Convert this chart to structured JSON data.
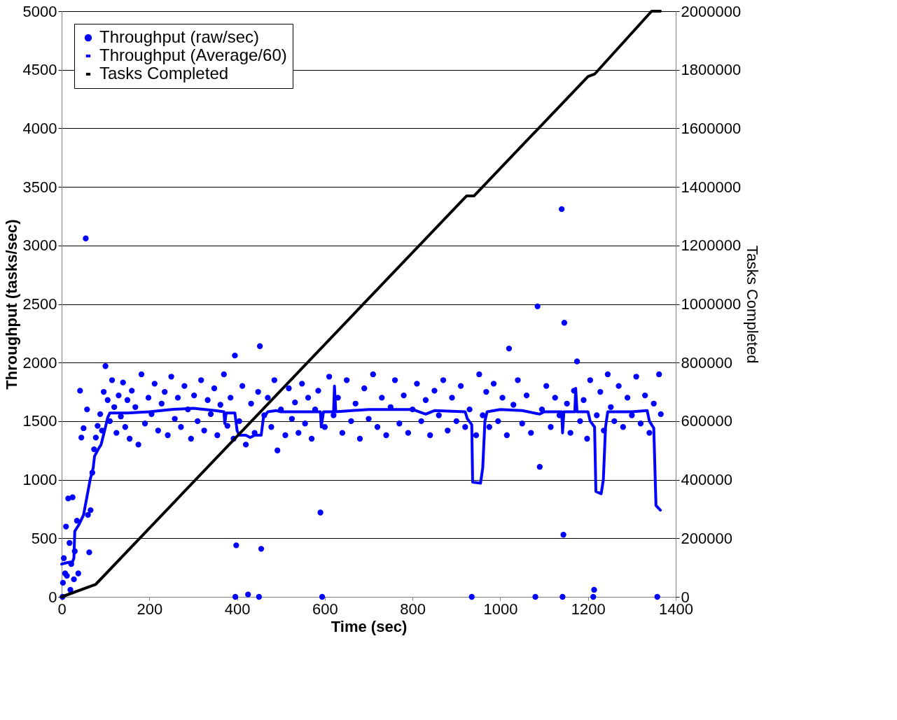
{
  "chart_data": {
    "type": "line",
    "xlabel": "Time (sec)",
    "ylabel": "Throughput (tasks/sec)",
    "y2label": "Tasks Completed",
    "xlim": [
      0,
      1400
    ],
    "xticks": [
      0,
      200,
      400,
      600,
      800,
      1000,
      1200,
      1400
    ],
    "ylim": [
      0,
      5000
    ],
    "yticks": [
      0,
      500,
      1000,
      1500,
      2000,
      2500,
      3000,
      3500,
      4000,
      4500,
      5000
    ],
    "y2lim": [
      0,
      2000000
    ],
    "y2ticks": [
      0,
      200000,
      400000,
      600000,
      800000,
      1000000,
      1200000,
      1400000,
      1600000,
      1800000,
      2000000
    ],
    "grid": "y",
    "legend": "top left",
    "line_style": "solid",
    "series": [
      {
        "name": "Throughput (raw/sec)",
        "type": "scatter",
        "marker": "circle",
        "color": "#0000ff",
        "x": [
          2,
          3,
          5,
          8,
          10,
          12,
          15,
          18,
          20,
          22,
          25,
          28,
          30,
          35,
          38,
          42,
          45,
          50,
          55,
          58,
          60,
          63,
          66,
          70,
          74,
          78,
          82,
          88,
          92,
          96,
          100,
          105,
          110,
          115,
          120,
          125,
          130,
          135,
          140,
          145,
          150,
          155,
          160,
          168,
          175,
          182,
          190,
          198,
          205,
          212,
          220,
          228,
          235,
          242,
          250,
          258,
          265,
          272,
          280,
          288,
          295,
          302,
          310,
          318,
          325,
          333,
          340,
          348,
          355,
          362,
          370,
          378,
          385,
          392,
          395,
          396,
          398,
          405,
          412,
          420,
          425,
          432,
          440,
          448,
          450,
          452,
          455,
          462,
          470,
          478,
          485,
          492,
          500,
          510,
          518,
          525,
          532,
          540,
          548,
          555,
          562,
          570,
          578,
          585,
          590,
          594,
          600,
          610,
          620,
          630,
          640,
          650,
          660,
          670,
          680,
          690,
          700,
          710,
          720,
          730,
          740,
          750,
          760,
          770,
          780,
          790,
          800,
          810,
          820,
          830,
          840,
          850,
          860,
          870,
          880,
          890,
          900,
          910,
          920,
          930,
          935,
          945,
          952,
          960,
          968,
          975,
          985,
          995,
          1005,
          1015,
          1020,
          1030,
          1040,
          1050,
          1060,
          1070,
          1080,
          1085,
          1090,
          1095,
          1105,
          1115,
          1125,
          1135,
          1140,
          1142,
          1144,
          1146,
          1152,
          1160,
          1168,
          1175,
          1182,
          1190,
          1198,
          1205,
          1212,
          1214,
          1220,
          1228,
          1236,
          1245,
          1252,
          1260,
          1270,
          1280,
          1290,
          1300,
          1310,
          1320,
          1330,
          1340,
          1350,
          1358,
          1362,
          1366
        ],
        "values": [
          0,
          120,
          330,
          200,
          600,
          180,
          840,
          460,
          60,
          280,
          850,
          150,
          390,
          650,
          200,
          1760,
          1360,
          1440,
          3060,
          1600,
          700,
          380,
          740,
          1060,
          1260,
          1360,
          1460,
          1560,
          1420,
          1750,
          1970,
          1680,
          1500,
          1850,
          1620,
          1400,
          1720,
          1540,
          1830,
          1450,
          1680,
          1350,
          1760,
          1620,
          1300,
          1900,
          1480,
          1700,
          1560,
          1820,
          1420,
          1650,
          1750,
          1380,
          1880,
          1520,
          1700,
          1450,
          1800,
          1600,
          1350,
          1720,
          1500,
          1850,
          1420,
          1680,
          1560,
          1780,
          1380,
          1640,
          1900,
          1460,
          1700,
          1350,
          2060,
          0,
          440,
          1500,
          1800,
          1300,
          20,
          1650,
          1400,
          1750,
          0,
          2140,
          410,
          1550,
          1700,
          1450,
          1850,
          1250,
          1600,
          1380,
          1780,
          1520,
          1660,
          1400,
          1820,
          1480,
          1700,
          1350,
          1600,
          1760,
          720,
          0,
          1450,
          1880,
          1550,
          1700,
          1400,
          1850,
          1500,
          1650,
          1350,
          1780,
          1520,
          1900,
          1450,
          1700,
          1380,
          1620,
          1850,
          1480,
          1720,
          1400,
          1600,
          1820,
          1500,
          1680,
          1380,
          1760,
          1550,
          1850,
          1420,
          1700,
          1500,
          1800,
          1450,
          1600,
          0,
          1380,
          1900,
          1550,
          1750,
          1450,
          1820,
          1500,
          1700,
          1380,
          2120,
          1640,
          1850,
          1480,
          1720,
          1400,
          0,
          2480,
          1110,
          1600,
          1800,
          1450,
          1700,
          1550,
          3310,
          0,
          530,
          2340,
          1650,
          1400,
          1760,
          2010,
          1500,
          1680,
          1350,
          1850,
          0,
          60,
          1550,
          1750,
          1420,
          1900,
          1620,
          1500,
          1800,
          1450,
          1700,
          1550,
          1880,
          1480,
          1720,
          1400,
          1650,
          0,
          1900,
          1560
        ]
      },
      {
        "name": "Throughput (Average/60)",
        "color": "#0000ff",
        "x": [
          0,
          10,
          25,
          28,
          30,
          40,
          50,
          55,
          65,
          72,
          75,
          85,
          90,
          100,
          105,
          110,
          150,
          200,
          250,
          300,
          350,
          370,
          372,
          375,
          395,
          400,
          405,
          420,
          430,
          440,
          455,
          460,
          470,
          490,
          500,
          590,
          592,
          597,
          620,
          622,
          625,
          700,
          800,
          830,
          850,
          920,
          925,
          935,
          937,
          955,
          960,
          965,
          970,
          1000,
          1050,
          1090,
          1100,
          1140,
          1142,
          1145,
          1170,
          1172,
          1175,
          1200,
          1205,
          1215,
          1218,
          1230,
          1235,
          1240,
          1245,
          1300,
          1335,
          1340,
          1350,
          1355,
          1365
        ],
        "values": [
          280,
          290,
          300,
          330,
          560,
          620,
          700,
          800,
          1000,
          1100,
          1200,
          1270,
          1300,
          1450,
          1530,
          1570,
          1570,
          1580,
          1600,
          1610,
          1590,
          1580,
          1480,
          1570,
          1570,
          1420,
          1380,
          1380,
          1360,
          1380,
          1380,
          1530,
          1580,
          1590,
          1580,
          1580,
          1450,
          1580,
          1580,
          1800,
          1580,
          1600,
          1600,
          1560,
          1590,
          1580,
          1520,
          1470,
          980,
          970,
          1100,
          1500,
          1580,
          1600,
          1590,
          1560,
          1580,
          1580,
          1400,
          1580,
          1580,
          1780,
          1580,
          1580,
          1500,
          1450,
          900,
          880,
          1000,
          1450,
          1580,
          1580,
          1590,
          1500,
          1440,
          780,
          740
        ]
      },
      {
        "name": "Tasks Completed",
        "axis": "y2",
        "color": "#000000",
        "x": [
          0,
          78,
          923,
          940,
          1200,
          1215,
          1345,
          1365
        ],
        "values": [
          0,
          43000,
          1369000,
          1369000,
          1777000,
          1785000,
          2000000,
          2000000
        ]
      }
    ]
  }
}
